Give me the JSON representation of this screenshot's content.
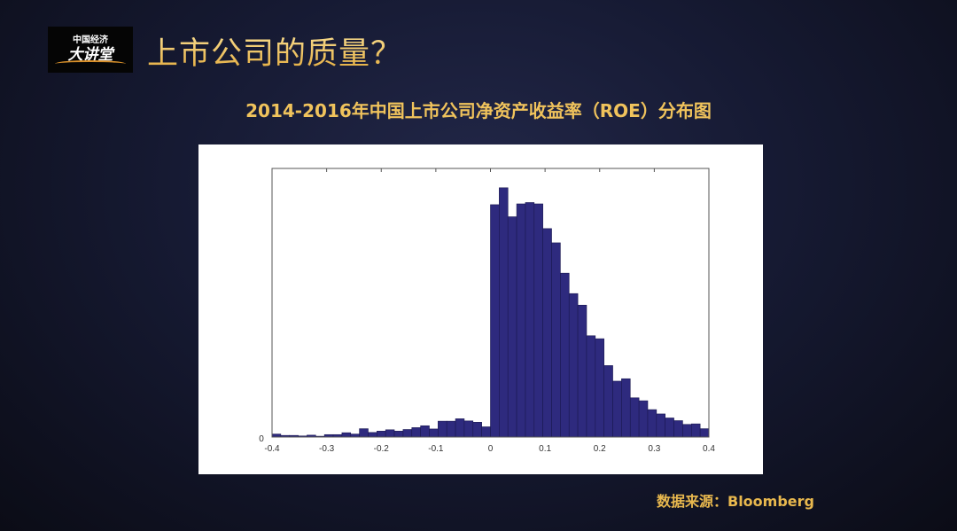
{
  "logo": {
    "line1": "中国经济",
    "line2": "大讲堂"
  },
  "header": {
    "title": "上市公司的质量？"
  },
  "subtitle": "2014-2016年中国上市公司净资产收益率（ROE）分布图",
  "source": "数据来源：Bloomberg",
  "colors": {
    "bar": "#2e2a7e",
    "title": "#f1c95c",
    "background": "#161a33"
  },
  "chart_data": {
    "type": "bar",
    "subtype": "histogram",
    "title": "",
    "xlabel": "",
    "ylabel": "",
    "xlim": [
      -0.4,
      0.4
    ],
    "ylim": [
      0,
      100
    ],
    "y_units": "relative frequency (unlabeled axis, scaled to plot height)",
    "grid": false,
    "x_ticks": [
      "-0.4",
      "-0.3",
      "-0.2",
      "-0.1",
      "0",
      "0.1",
      "0.2",
      "0.3",
      "0.4"
    ],
    "y_ticks": [
      "0"
    ],
    "bin_start": -0.4,
    "bin_width": 0.016,
    "values": [
      1.1,
      0.6,
      0.6,
      0.4,
      0.7,
      0.3,
      0.9,
      0.9,
      1.6,
      1.1,
      3.1,
      1.7,
      2.2,
      2.7,
      2.2,
      2.8,
      3.5,
      4.2,
      3.0,
      5.9,
      5.9,
      6.8,
      6.0,
      5.5,
      3.8,
      86.5,
      92.8,
      82.0,
      86.8,
      87.3,
      86.8,
      77.6,
      72.3,
      61.0,
      53.4,
      49.1,
      37.7,
      36.6,
      26.6,
      20.8,
      21.7,
      14.6,
      13.5,
      10.2,
      8.6,
      7.1,
      6.1,
      4.7,
      4.9,
      3.1
    ]
  }
}
